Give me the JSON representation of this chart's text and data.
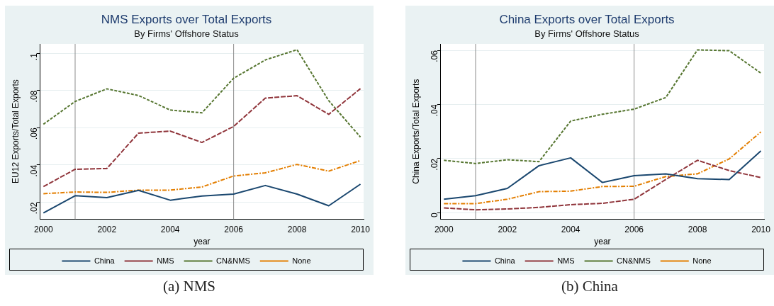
{
  "chart_data": [
    {
      "type": "line",
      "title": "NMS Exports over Total Exports",
      "subtitle": "By Firms' Offshore Status",
      "xlabel": "year",
      "ylabel": "EU12 Exports/Total Exports",
      "x": [
        2000,
        2001,
        2002,
        2003,
        2004,
        2005,
        2006,
        2007,
        2008,
        2009,
        2010
      ],
      "series": [
        {
          "name": "China",
          "color": "#1a476f",
          "line_style": "solid",
          "values": [
            0.0143,
            0.0235,
            0.0225,
            0.0264,
            0.0211,
            0.0233,
            0.0244,
            0.029,
            0.0244,
            0.0181,
            0.0297
          ]
        },
        {
          "name": "NMS",
          "color": "#90353b",
          "line_style": "dashed",
          "values": [
            0.0284,
            0.0377,
            0.0381,
            0.0571,
            0.0582,
            0.0521,
            0.0607,
            0.0759,
            0.0772,
            0.0672,
            0.081
          ]
        },
        {
          "name": "CN&NMS",
          "color": "#55752f",
          "line_style": "dashed",
          "values": [
            0.0619,
            0.0741,
            0.0809,
            0.0773,
            0.0695,
            0.068,
            0.0866,
            0.0964,
            0.1019,
            0.0745,
            0.055
          ]
        },
        {
          "name": "None",
          "color": "#e37e00",
          "line_style": "dotted",
          "values": [
            0.0246,
            0.0255,
            0.0253,
            0.0265,
            0.0265,
            0.0282,
            0.0341,
            0.0358,
            0.0403,
            0.0367,
            0.0424
          ]
        }
      ],
      "xlim": [
        1999.9,
        2010.1
      ],
      "xticks": [
        2000,
        2002,
        2004,
        2006,
        2008,
        2010
      ],
      "ylim": [
        0.011,
        0.105
      ],
      "yticks": [
        {
          "value": 0.02,
          "label": ".02"
        },
        {
          "value": 0.04,
          "label": ".04"
        },
        {
          "value": 0.06,
          "label": ".06"
        },
        {
          "value": 0.08,
          "label": ".08"
        },
        {
          "value": 0.1,
          "label": ".1"
        }
      ],
      "ref_lines": [
        {
          "axis": "x",
          "value": 2001,
          "color": "#8c8c8c"
        },
        {
          "axis": "x",
          "value": 2006,
          "color": "#8c8c8c"
        }
      ],
      "grid": "y",
      "legend": "bottom",
      "marker": "none",
      "annotations": [
        "(a) NMS"
      ]
    },
    {
      "type": "line",
      "title": "China Exports over Total Exports",
      "subtitle": "By Firms' Offshore Status",
      "xlabel": "year",
      "ylabel": "China Exports/Total Exports",
      "x": [
        2000,
        2001,
        2002,
        2003,
        2004,
        2005,
        2006,
        2007,
        2008,
        2009,
        2010
      ],
      "series": [
        {
          "name": "China",
          "color": "#1a476f",
          "line_style": "solid",
          "values": [
            0.005,
            0.0063,
            0.009,
            0.0174,
            0.0203,
            0.0112,
            0.0137,
            0.0144,
            0.0126,
            0.0123,
            0.0229
          ]
        },
        {
          "name": "NMS",
          "color": "#90353b",
          "line_style": "dashed",
          "values": [
            0.0018,
            0.0011,
            0.0014,
            0.002,
            0.003,
            0.0035,
            0.005,
            0.0123,
            0.0194,
            0.0156,
            0.013
          ]
        },
        {
          "name": "CN&NMS",
          "color": "#55752f",
          "line_style": "dashed",
          "values": [
            0.0194,
            0.0182,
            0.0196,
            0.0189,
            0.0339,
            0.0364,
            0.0383,
            0.0426,
            0.0602,
            0.0599,
            0.0516
          ]
        },
        {
          "name": "None",
          "color": "#e37e00",
          "line_style": "dotted",
          "values": [
            0.0034,
            0.0034,
            0.005,
            0.0078,
            0.008,
            0.0097,
            0.0098,
            0.0134,
            0.0144,
            0.0199,
            0.0299
          ]
        }
      ],
      "xlim": [
        1999.9,
        2010.1
      ],
      "xticks": [
        2000,
        2002,
        2004,
        2006,
        2008,
        2010
      ],
      "ylim": [
        -0.0023,
        0.0624
      ],
      "yticks": [
        {
          "value": 0,
          "label": "0"
        },
        {
          "value": 0.02,
          "label": ".02"
        },
        {
          "value": 0.04,
          "label": ".04"
        },
        {
          "value": 0.06,
          "label": ".06"
        }
      ],
      "ref_lines": [
        {
          "axis": "x",
          "value": 2001,
          "color": "#8c8c8c"
        },
        {
          "axis": "x",
          "value": 2006,
          "color": "#8c8c8c"
        }
      ],
      "grid": "y",
      "legend": "bottom",
      "marker": "none",
      "annotations": [
        "(b) China"
      ]
    }
  ]
}
